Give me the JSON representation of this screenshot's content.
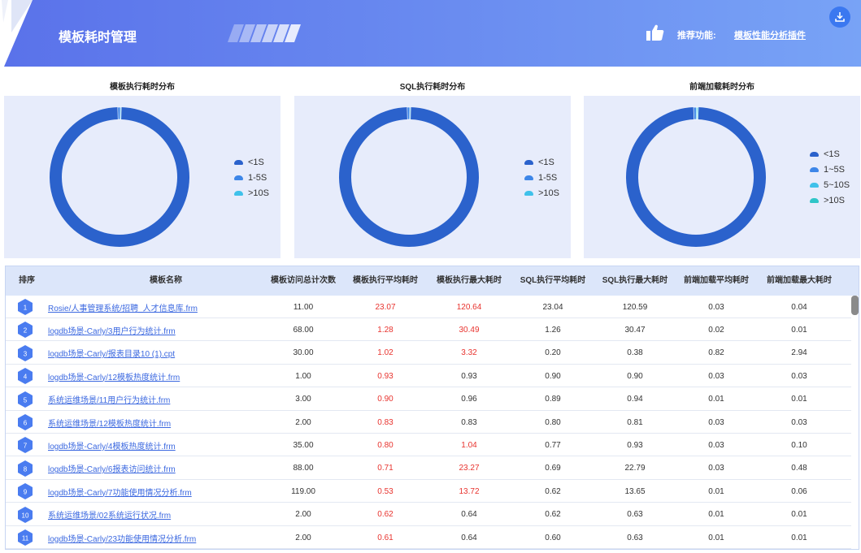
{
  "header": {
    "title": "模板耗时管理",
    "rec_label": "推荐功能:",
    "rec_link": "模板性能分析插件",
    "download_icon": "download-icon",
    "thumb_icon": "thumbs-up-icon"
  },
  "charts": [
    {
      "title": "模板执行耗时分布",
      "legend": [
        "<1S",
        "1-5S",
        ">10S"
      ],
      "colors": [
        "#2b62cc",
        "#3d86e8",
        "#3fc1ea"
      ]
    },
    {
      "title": "SQL执行耗时分布",
      "legend": [
        "<1S",
        "1-5S",
        ">10S"
      ],
      "colors": [
        "#2b62cc",
        "#3d86e8",
        "#3fc1ea"
      ]
    },
    {
      "title": "前端加载耗时分布",
      "legend": [
        "<1S",
        "1~5S",
        "5~10S",
        ">10S"
      ],
      "colors": [
        "#2b62cc",
        "#3d86e8",
        "#3fc1ea",
        "#2fc5c8"
      ]
    }
  ],
  "chart_data": [
    {
      "type": "pie",
      "title": "模板执行耗时分布",
      "categories": [
        "<1S",
        "1-5S",
        ">10S"
      ],
      "values": [
        99.2,
        0.6,
        0.2
      ]
    },
    {
      "type": "pie",
      "title": "SQL执行耗时分布",
      "categories": [
        "<1S",
        "1-5S",
        ">10S"
      ],
      "values": [
        99.2,
        0.6,
        0.2
      ]
    },
    {
      "type": "pie",
      "title": "前端加载耗时分布",
      "categories": [
        "<1S",
        "1~5S",
        "5~10S",
        ">10S"
      ],
      "values": [
        98.9,
        0.6,
        0.3,
        0.2
      ]
    }
  ],
  "table": {
    "headers": {
      "rank": "排序",
      "name": "模板名称",
      "visits": [
        "模板访问",
        "总计次数"
      ],
      "tpl_avg": [
        "模板执行",
        "平均耗时"
      ],
      "tpl_max": [
        "模板执行",
        "最大耗时"
      ],
      "sql_avg": [
        "SQL执行",
        "平均耗时"
      ],
      "sql_max": [
        "SQL执行",
        "最大耗时"
      ],
      "fe_avg": [
        "前端加载",
        "平均耗时"
      ],
      "fe_max": [
        "前端加载",
        "最大耗时"
      ]
    },
    "rows": [
      {
        "rank": "1",
        "name": "Rosie/人事管理系统/招聘_人才信息库.frm",
        "visits": "11.00",
        "tpl_avg": "23.07",
        "tpl_max": "120.64",
        "sql_avg": "23.04",
        "sql_max": "120.59",
        "fe_avg": "0.03",
        "fe_max": "0.04",
        "tpl_max_red": true
      },
      {
        "rank": "2",
        "name": "logdb场景-Carly/3用户行为统计.frm",
        "visits": "68.00",
        "tpl_avg": "1.28",
        "tpl_max": "30.49",
        "sql_avg": "1.26",
        "sql_max": "30.47",
        "fe_avg": "0.02",
        "fe_max": "0.01",
        "tpl_max_red": true
      },
      {
        "rank": "3",
        "name": "logdb场景-Carly/报表目录10 (1).cpt",
        "visits": "30.00",
        "tpl_avg": "1.02",
        "tpl_max": "3.32",
        "sql_avg": "0.20",
        "sql_max": "0.38",
        "fe_avg": "0.82",
        "fe_max": "2.94",
        "tpl_max_red": true
      },
      {
        "rank": "4",
        "name": "logdb场景-Carly/12模板热度统计.frm",
        "visits": "1.00",
        "tpl_avg": "0.93",
        "tpl_max": "0.93",
        "sql_avg": "0.90",
        "sql_max": "0.90",
        "fe_avg": "0.03",
        "fe_max": "0.03",
        "tpl_max_red": false
      },
      {
        "rank": "5",
        "name": "系统运维场景/11用户行为统计.frm",
        "visits": "3.00",
        "tpl_avg": "0.90",
        "tpl_max": "0.96",
        "sql_avg": "0.89",
        "sql_max": "0.94",
        "fe_avg": "0.01",
        "fe_max": "0.01",
        "tpl_max_red": false
      },
      {
        "rank": "6",
        "name": "系统运维场景/12模板热度统计.frm",
        "visits": "2.00",
        "tpl_avg": "0.83",
        "tpl_max": "0.83",
        "sql_avg": "0.80",
        "sql_max": "0.81",
        "fe_avg": "0.03",
        "fe_max": "0.03",
        "tpl_max_red": false
      },
      {
        "rank": "7",
        "name": "logdb场景-Carly/4模板热度统计.frm",
        "visits": "35.00",
        "tpl_avg": "0.80",
        "tpl_max": "1.04",
        "sql_avg": "0.77",
        "sql_max": "0.93",
        "fe_avg": "0.03",
        "fe_max": "0.10",
        "tpl_max_red": true
      },
      {
        "rank": "8",
        "name": "logdb场景-Carly/6报表访问统计.frm",
        "visits": "88.00",
        "tpl_avg": "0.71",
        "tpl_max": "23.27",
        "sql_avg": "0.69",
        "sql_max": "22.79",
        "fe_avg": "0.03",
        "fe_max": "0.48",
        "tpl_max_red": true
      },
      {
        "rank": "9",
        "name": "logdb场景-Carly/7功能使用情况分析.frm",
        "visits": "119.00",
        "tpl_avg": "0.53",
        "tpl_max": "13.72",
        "sql_avg": "0.62",
        "sql_max": "13.65",
        "fe_avg": "0.01",
        "fe_max": "0.06",
        "tpl_max_red": true
      },
      {
        "rank": "10",
        "name": "系统运维场景/02系统运行状况.frm",
        "visits": "2.00",
        "tpl_avg": "0.62",
        "tpl_max": "0.64",
        "sql_avg": "0.62",
        "sql_max": "0.63",
        "fe_avg": "0.01",
        "fe_max": "0.01",
        "tpl_max_red": false
      },
      {
        "rank": "11",
        "name": "logdb场景-Carly/23功能使用情况分析.frm",
        "visits": "2.00",
        "tpl_avg": "0.61",
        "tpl_max": "0.64",
        "sql_avg": "0.60",
        "sql_max": "0.63",
        "fe_avg": "0.01",
        "fe_max": "0.01",
        "tpl_max_red": false
      }
    ]
  }
}
